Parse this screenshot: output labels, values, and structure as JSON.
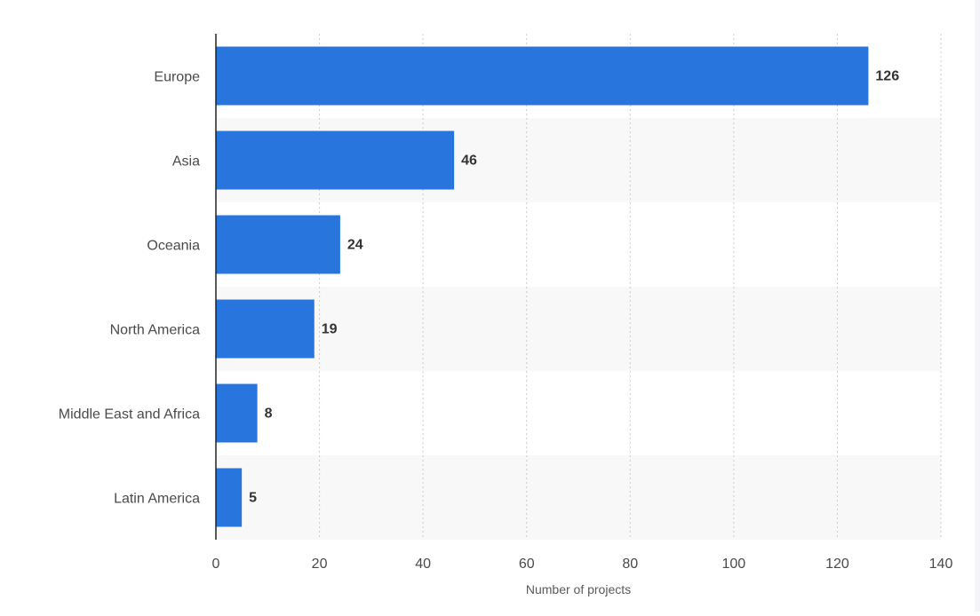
{
  "chart_data": {
    "type": "bar",
    "orientation": "horizontal",
    "categories": [
      "Europe",
      "Asia",
      "Oceania",
      "North America",
      "Middle East and Africa",
      "Latin America"
    ],
    "values": [
      126,
      46,
      24,
      19,
      8,
      5
    ],
    "xlabel": "Number of projects",
    "ylabel": "",
    "xlim": [
      0,
      140
    ],
    "ticks": [
      0,
      20,
      40,
      60,
      80,
      100,
      120,
      140
    ],
    "grid": "vertical-dotted",
    "data_labels": true,
    "colors": {
      "bar": "#2875de",
      "band": "#f8f8f8",
      "grid": "#cccccc",
      "axis": "#222222"
    }
  }
}
